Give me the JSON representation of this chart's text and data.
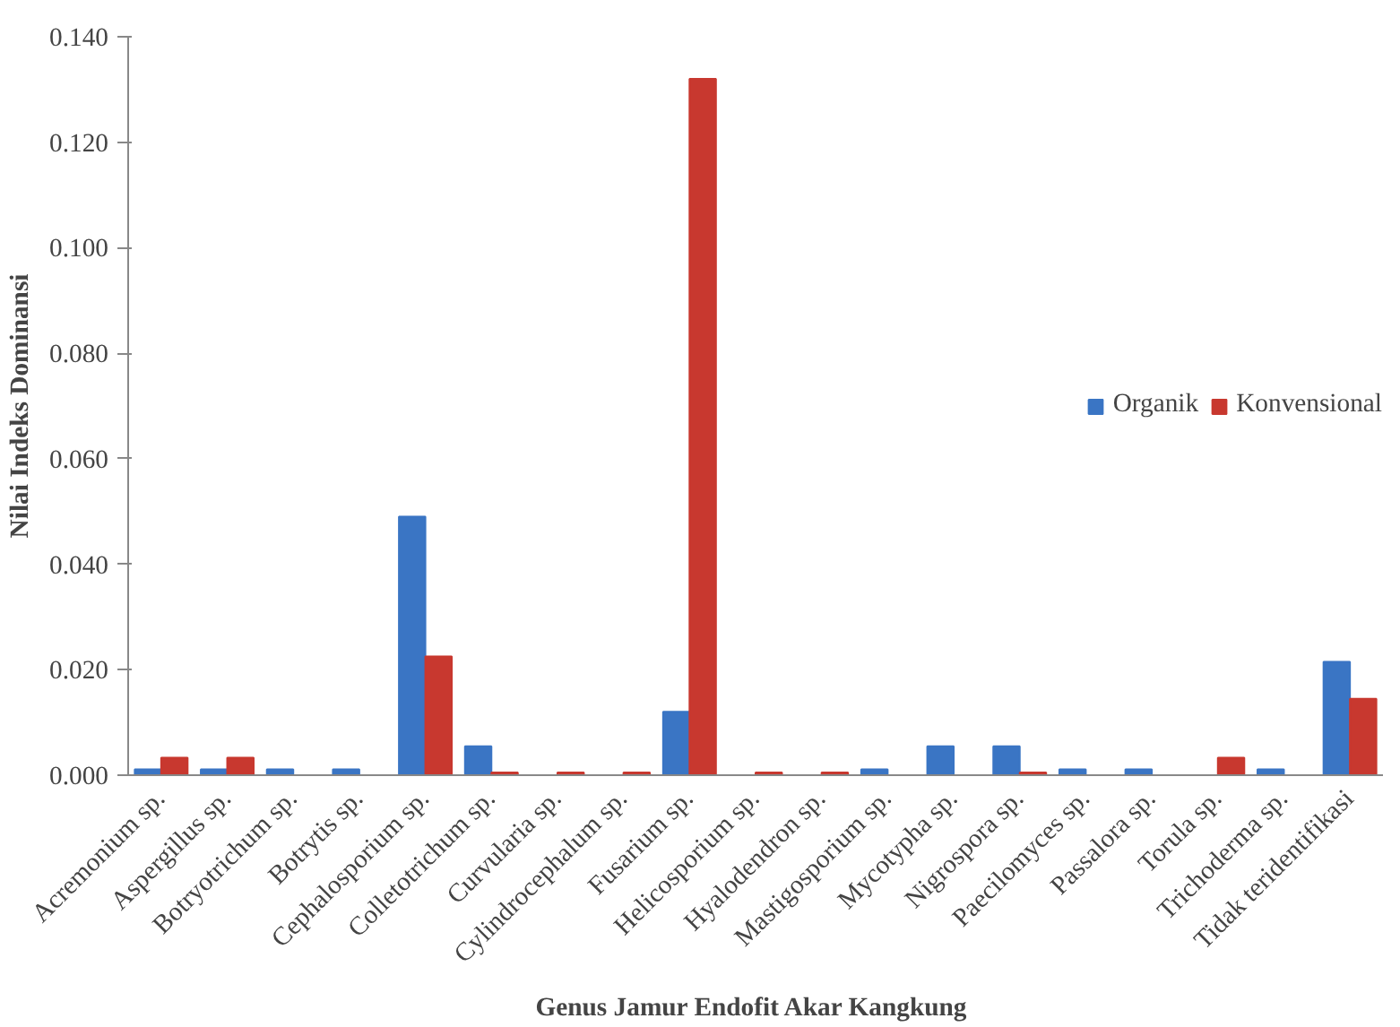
{
  "chart_data": {
    "type": "bar",
    "xlabel": "Genus Jamur  Endofit Akar Kangkung",
    "ylabel": "Nilai Indeks Dominansi",
    "categories": [
      "Acremonium sp.",
      "Aspergillus sp.",
      "Botryotrichum sp.",
      "Botrytis sp.",
      "Cephalosporium sp.",
      "Colletotrichum sp.",
      "Curvularia sp.",
      "Cylindrocephalum sp.",
      "Fusarium sp.",
      "Helicosporium sp.",
      "Hyalodendron sp.",
      "Mastigosporium sp.",
      "Mycotypha sp.",
      "Nigrospora sp.",
      "Paecilomyces sp.",
      "Passalora sp.",
      "Torula sp.",
      "Trichoderma sp.",
      "Tidak teridentifikasi"
    ],
    "series": [
      {
        "name": "Organik",
        "color": "#3a75c4",
        "values": [
          0.0011,
          0.0011,
          0.0011,
          0.0011,
          0.049,
          0.0055,
          0,
          0,
          0.012,
          0,
          0,
          0.0011,
          0.0055,
          0.0055,
          0.0011,
          0.0011,
          0,
          0.0011,
          0.0215
        ]
      },
      {
        "name": "Konvensional",
        "color": "#c8382f",
        "values": [
          0.0033,
          0.0033,
          0,
          0,
          0.0225,
          0.0005,
          0.0005,
          0.0005,
          0.132,
          0.0005,
          0.0005,
          0,
          0,
          0.0005,
          0,
          0,
          0.0033,
          0,
          0.0145
        ]
      }
    ],
    "ylim": [
      0,
      0.14
    ],
    "yticks": [
      {
        "value": 0,
        "label": "0.000"
      },
      {
        "value": 0.02,
        "label": "0.020"
      },
      {
        "value": 0.04,
        "label": "0.040"
      },
      {
        "value": 0.06,
        "label": "0.060"
      },
      {
        "value": 0.08,
        "label": "0.080"
      },
      {
        "value": 0.1,
        "label": "0.100"
      },
      {
        "value": 0.12,
        "label": "0.120"
      },
      {
        "value": 0.14,
        "label": "0.140"
      }
    ],
    "grid": false,
    "legend": "right"
  }
}
